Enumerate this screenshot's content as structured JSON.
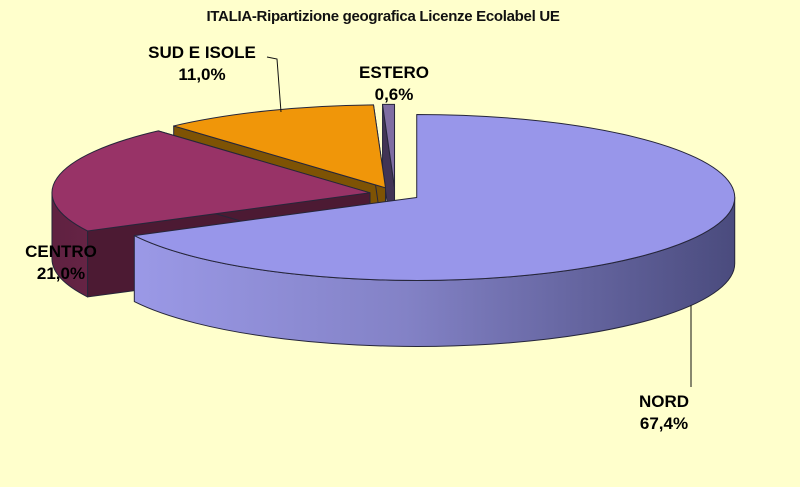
{
  "chart_data": {
    "type": "pie",
    "style": "3d-exploded",
    "title": "ITALIA-Ripartizione geografica Licenze Ecolabel UE",
    "unit": "%",
    "decimal_style": "comma",
    "direction": "clockwise",
    "start_angle_deg": 0,
    "legend": "none",
    "background": "#FFFFCC",
    "outline_color": "#26263A",
    "slices": [
      {
        "label": "NORD",
        "value": 67.4,
        "display": "67,4%",
        "color": "#9896EA",
        "side_gradient": [
          "#9B99E7",
          "#8382C6",
          "#494A7C"
        ]
      },
      {
        "label": "CENTRO",
        "value": 21.0,
        "display": "21,0%",
        "color": "#983367",
        "side": "#732850",
        "wall": "#4C1A33"
      },
      {
        "label": "SUD E ISOLE",
        "value": 11.0,
        "display": "11,0%",
        "color": "#F09609",
        "wall": "#7E5304"
      },
      {
        "label": "ESTERO",
        "value": 0.6,
        "display": "0,6%",
        "color": "#7F6DA2",
        "wall": "#413455"
      }
    ]
  }
}
